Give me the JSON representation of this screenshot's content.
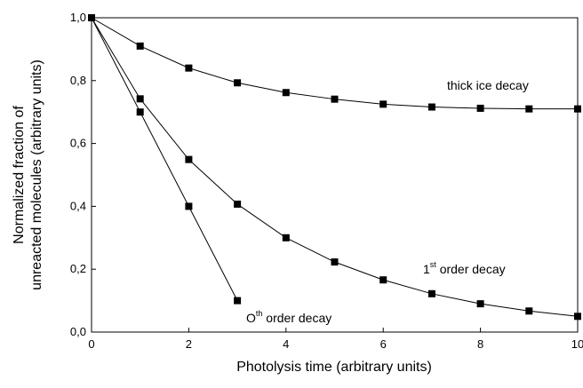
{
  "chart_data": {
    "type": "line",
    "x_label": "Photolysis time (arbitrary units)",
    "y_label": [
      "Normalized fraction of",
      "unreacted molecules (arbitrary units)"
    ],
    "x": [
      0,
      1,
      2,
      3,
      4,
      5,
      6,
      7,
      8,
      9,
      10
    ],
    "series": [
      {
        "color": "#000000",
        "values": [
          1.0,
          0.91,
          0.84,
          0.793,
          0.762,
          0.741,
          0.725,
          0.716,
          0.712,
          0.71,
          0.71
        ]
      },
      {
        "color": "#000000",
        "values": [
          1.0,
          0.742,
          0.549,
          0.407,
          0.3,
          0.223,
          0.166,
          0.122,
          0.09,
          0.067,
          0.05
        ]
      },
      {
        "color": "#000000",
        "values": [
          1.0,
          0.7,
          0.4,
          0.1,
          null,
          null,
          null,
          null,
          null,
          null,
          null
        ]
      }
    ],
    "annotations": [
      {
        "parts": [
          "thick ice decay"
        ]
      },
      {
        "parts": [
          "1",
          "st",
          " order decay"
        ]
      },
      {
        "parts": [
          "O",
          "th",
          " order decay"
        ]
      }
    ],
    "xlim": [
      0,
      10
    ],
    "xticks": [
      0,
      2,
      4,
      6,
      8,
      10
    ],
    "ylim": [
      0,
      1
    ],
    "yticks": [
      {
        "value": 0,
        "label": "0,0"
      },
      {
        "value": 0.2,
        "label": "0,2"
      },
      {
        "value": 0.4,
        "label": "0,4"
      },
      {
        "value": 0.6,
        "label": "0,6"
      },
      {
        "value": 0.8,
        "label": "0,8"
      },
      {
        "value": 1,
        "label": "1,0"
      }
    ],
    "marker": "square",
    "grid": false
  }
}
